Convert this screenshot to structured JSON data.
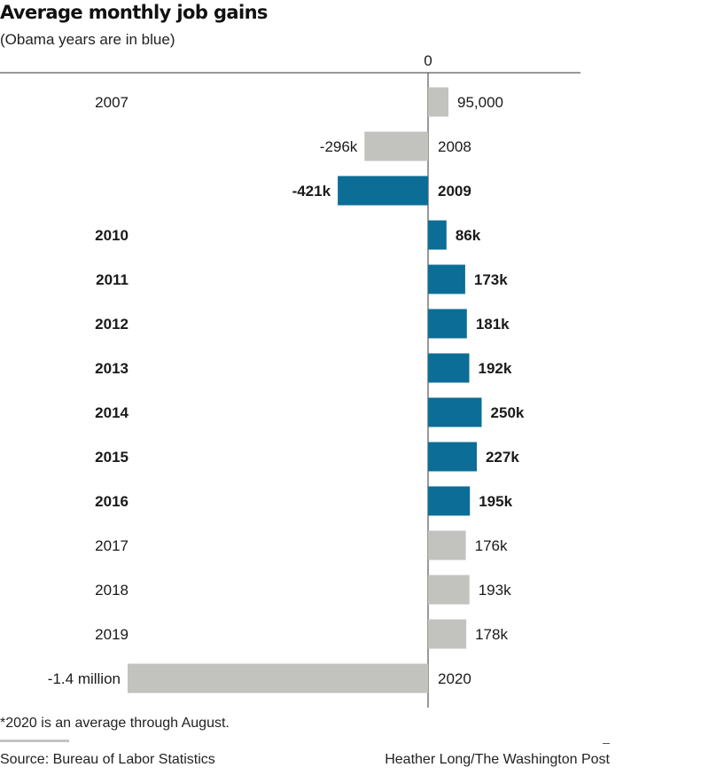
{
  "header": {
    "title": "Average monthly job gains",
    "subtitle": "(Obama years are in blue)"
  },
  "footer": {
    "footnote": "*2020 is an average through August.",
    "source": "Source: Bureau of Labor Statistics",
    "credit": "Heather Long/The Washington Post"
  },
  "colors": {
    "obama": "#0c6d96",
    "other": "#c2c2bf"
  },
  "chart_data": {
    "type": "bar",
    "orientation": "horizontal",
    "title": "Average monthly job gains",
    "subtitle": "(Obama years are in blue)",
    "zero_label": "0",
    "categories": [
      "2007",
      "2008",
      "2009",
      "2010",
      "2011",
      "2012",
      "2013",
      "2014",
      "2015",
      "2016",
      "2017",
      "2018",
      "2019",
      "2020"
    ],
    "values": [
      95000,
      -296000,
      -421000,
      86000,
      173000,
      181000,
      192000,
      250000,
      227000,
      195000,
      176000,
      193000,
      178000,
      -1400000
    ],
    "value_labels": [
      "95,000",
      "-296k",
      "-421k",
      "86k",
      "173k",
      "181k",
      "192k",
      "250k",
      "227k",
      "195k",
      "176k",
      "193k",
      "178k",
      "-1.4 million"
    ],
    "highlighted": [
      false,
      false,
      true,
      true,
      true,
      true,
      true,
      true,
      true,
      true,
      false,
      false,
      false,
      false
    ],
    "legend": "none",
    "grid": false
  }
}
